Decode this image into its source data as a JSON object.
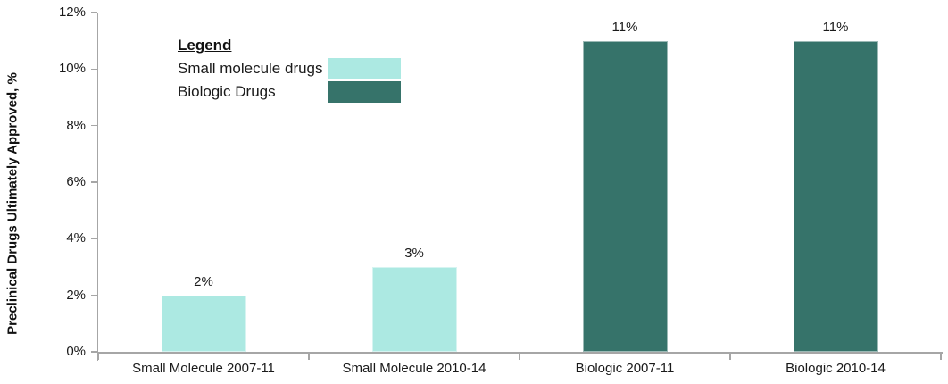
{
  "chart_data": {
    "type": "bar",
    "title": "",
    "xlabel": "",
    "ylabel": "Preclinical Drugs Ultimately Approved, %",
    "ylim": [
      0,
      12
    ],
    "ytick_step": 2,
    "ytick_labels_top_to_bottom": [
      "12%",
      "10%",
      "8%",
      "6%",
      "4%",
      "2%",
      "0%"
    ],
    "categories": [
      "Small Molecule 2007-11",
      "Small Molecule 2010-14",
      "Biologic 2007-11",
      "Biologic 2010-14"
    ],
    "values": [
      2,
      3,
      11,
      11
    ],
    "bar_labels": [
      "2%",
      "3%",
      "11%",
      "11%"
    ],
    "bar_colors": [
      "#ACE9E2",
      "#ACE9E2",
      "#36736A",
      "#36736A"
    ],
    "grid": false,
    "legend": {
      "title": "Legend",
      "position": "top-left-inside",
      "entries": [
        {
          "label": "Small molecule drugs",
          "color": "#ACE9E2"
        },
        {
          "label": "Biologic Drugs",
          "color": "#36736A"
        }
      ]
    },
    "colors": {
      "axis": "#A6A6A6",
      "text": "#1A1A1A",
      "small_molecule": "#ACE9E2",
      "biologic": "#36736A"
    }
  }
}
